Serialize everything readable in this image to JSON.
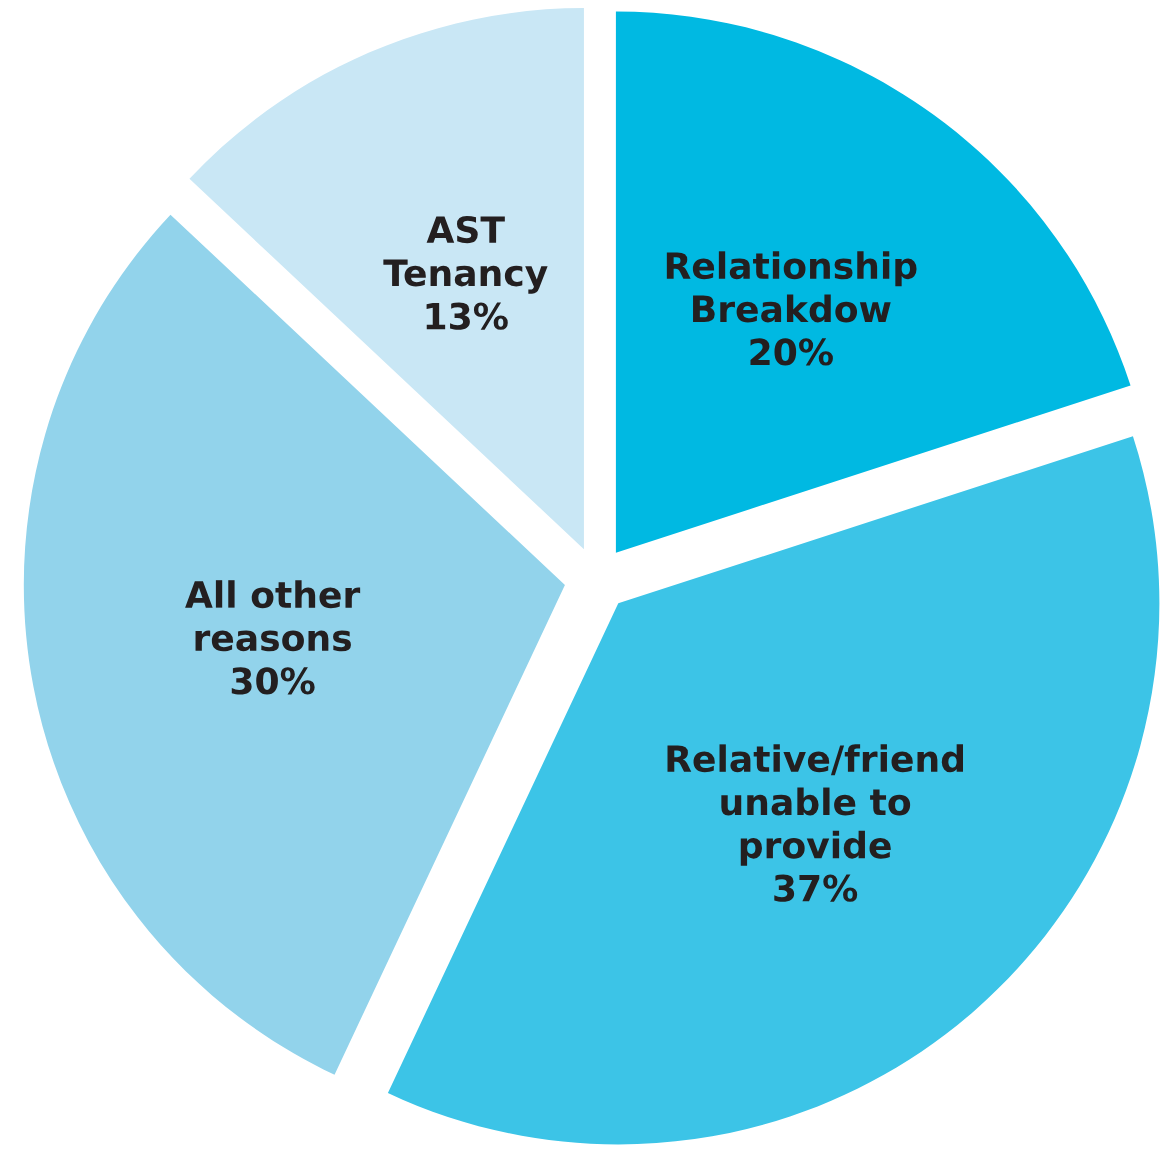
{
  "chart_data": {
    "type": "pie",
    "categories": [
      "Relationship\nBreakdow",
      "Relative/friend\nunable to\nprovide",
      "All other\nreasons",
      "AST\nTenancy"
    ],
    "values": [
      20,
      37,
      30,
      13
    ],
    "value_labels": [
      "20%",
      "37%",
      "30%",
      "13%"
    ],
    "colors": [
      "#00b9e2",
      "#3cc4e7",
      "#92d3eb",
      "#c9e7f5"
    ]
  }
}
